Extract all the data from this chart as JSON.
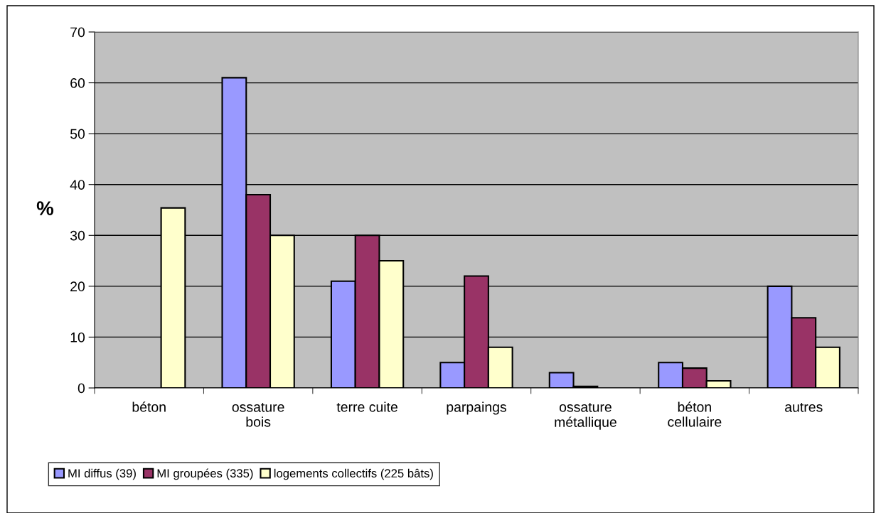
{
  "chart_data": {
    "type": "bar",
    "ylabel": "%",
    "categories": [
      "béton",
      "ossature\nbois",
      "terre cuite",
      "parpaings",
      "ossature\nmétallique",
      "béton\ncellulaire",
      "autres"
    ],
    "series": [
      {
        "name": "MI diffus (39)",
        "color": "#9999ff",
        "values": [
          null,
          61,
          21,
          5,
          3,
          5,
          20
        ]
      },
      {
        "name": "MI groupées (335)",
        "color": "#993366",
        "values": [
          null,
          38,
          30,
          22,
          0.3,
          3.9,
          13.8
        ]
      },
      {
        "name": "logements collectifs (225 bâts)",
        "color": "#ffffcc",
        "values": [
          35.4,
          30,
          25,
          8,
          null,
          1.4,
          8
        ]
      }
    ],
    "ylim": [
      0,
      70
    ],
    "yticks": [
      0,
      10,
      20,
      30,
      40,
      50,
      60,
      70
    ],
    "grid": "y",
    "legend": "bottom left"
  }
}
